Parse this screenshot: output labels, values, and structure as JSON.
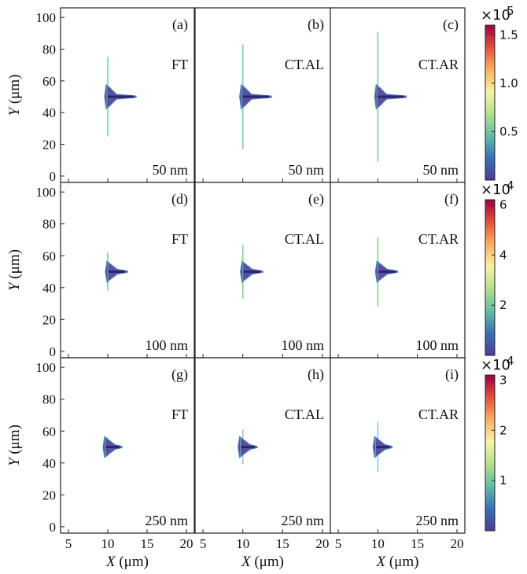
{
  "chart_data": {
    "type": "heatmap",
    "x_axis": {
      "label_var": "X",
      "label_unit": " (μm)",
      "range": [
        4,
        21
      ],
      "ticks": [
        5,
        10,
        15,
        20
      ]
    },
    "y_axis": {
      "label_var": "Y",
      "label_unit": " (μm)",
      "range": [
        -4,
        106
      ],
      "ticks": [
        0,
        20,
        40,
        60,
        80,
        100
      ]
    },
    "columns": [
      {
        "method": "FT",
        "vline_extra": 0
      },
      {
        "method": "CT.AL",
        "vline_extra": 8
      },
      {
        "method": "CT.AR",
        "vline_extra": 16
      }
    ],
    "rows": [
      {
        "size_label": "50 nm",
        "base_vline": [
          25,
          75
        ],
        "blob": {
          "x0": 9.8,
          "tip": 13.6,
          "y0": 44,
          "y1": 56
        },
        "vline_color": "#66c2a5",
        "colorbar": {
          "exponent": "5",
          "max": 1.6,
          "ticks": [
            0.5,
            1.0,
            1.5
          ],
          "tick_labels": [
            "0.5",
            "1.0",
            "1.5"
          ]
        }
      },
      {
        "size_label": "100 nm",
        "base_vline": [
          38,
          62
        ],
        "blob": {
          "x0": 9.9,
          "tip": 12.5,
          "y0": 45,
          "y1": 55
        },
        "vline_color": "#74c476",
        "colorbar": {
          "exponent": "4",
          "max": 6.2,
          "ticks": [
            2,
            4,
            6
          ],
          "tick_labels": [
            "2",
            "4",
            "6"
          ]
        }
      },
      {
        "size_label": "250 nm",
        "base_vline": [
          44,
          56
        ],
        "blob": {
          "x0": 9.6,
          "tip": 11.8,
          "y0": 45,
          "y1": 55
        },
        "vline_color": "#7fbfd4",
        "colorbar": {
          "exponent": "4",
          "max": 3.1,
          "ticks": [
            1,
            2,
            3
          ],
          "tick_labels": [
            "1",
            "2",
            "3"
          ]
        }
      }
    ],
    "panels": [
      {
        "label": "(a)",
        "method": "FT",
        "size": "50 nm"
      },
      {
        "label": "(b)",
        "method": "CT.AL",
        "size": "50 nm"
      },
      {
        "label": "(c)",
        "method": "CT.AR",
        "size": "50 nm"
      },
      {
        "label": "(d)",
        "method": "FT",
        "size": "100 nm"
      },
      {
        "label": "(e)",
        "method": "CT.AL",
        "size": "100 nm"
      },
      {
        "label": "(f)",
        "method": "CT.AR",
        "size": "100 nm"
      },
      {
        "label": "(g)",
        "method": "FT",
        "size": "250 nm"
      },
      {
        "label": "(h)",
        "method": "CT.AL",
        "size": "250 nm"
      },
      {
        "label": "(i)",
        "method": "CT.AR",
        "size": "250 nm"
      }
    ],
    "colormap": [
      "#4b3c97",
      "#3a6fb5",
      "#62bda6",
      "#b3e08b",
      "#f7f4a6",
      "#fdae61",
      "#e0513a",
      "#9e0142"
    ],
    "exp_prefix": "×10"
  }
}
